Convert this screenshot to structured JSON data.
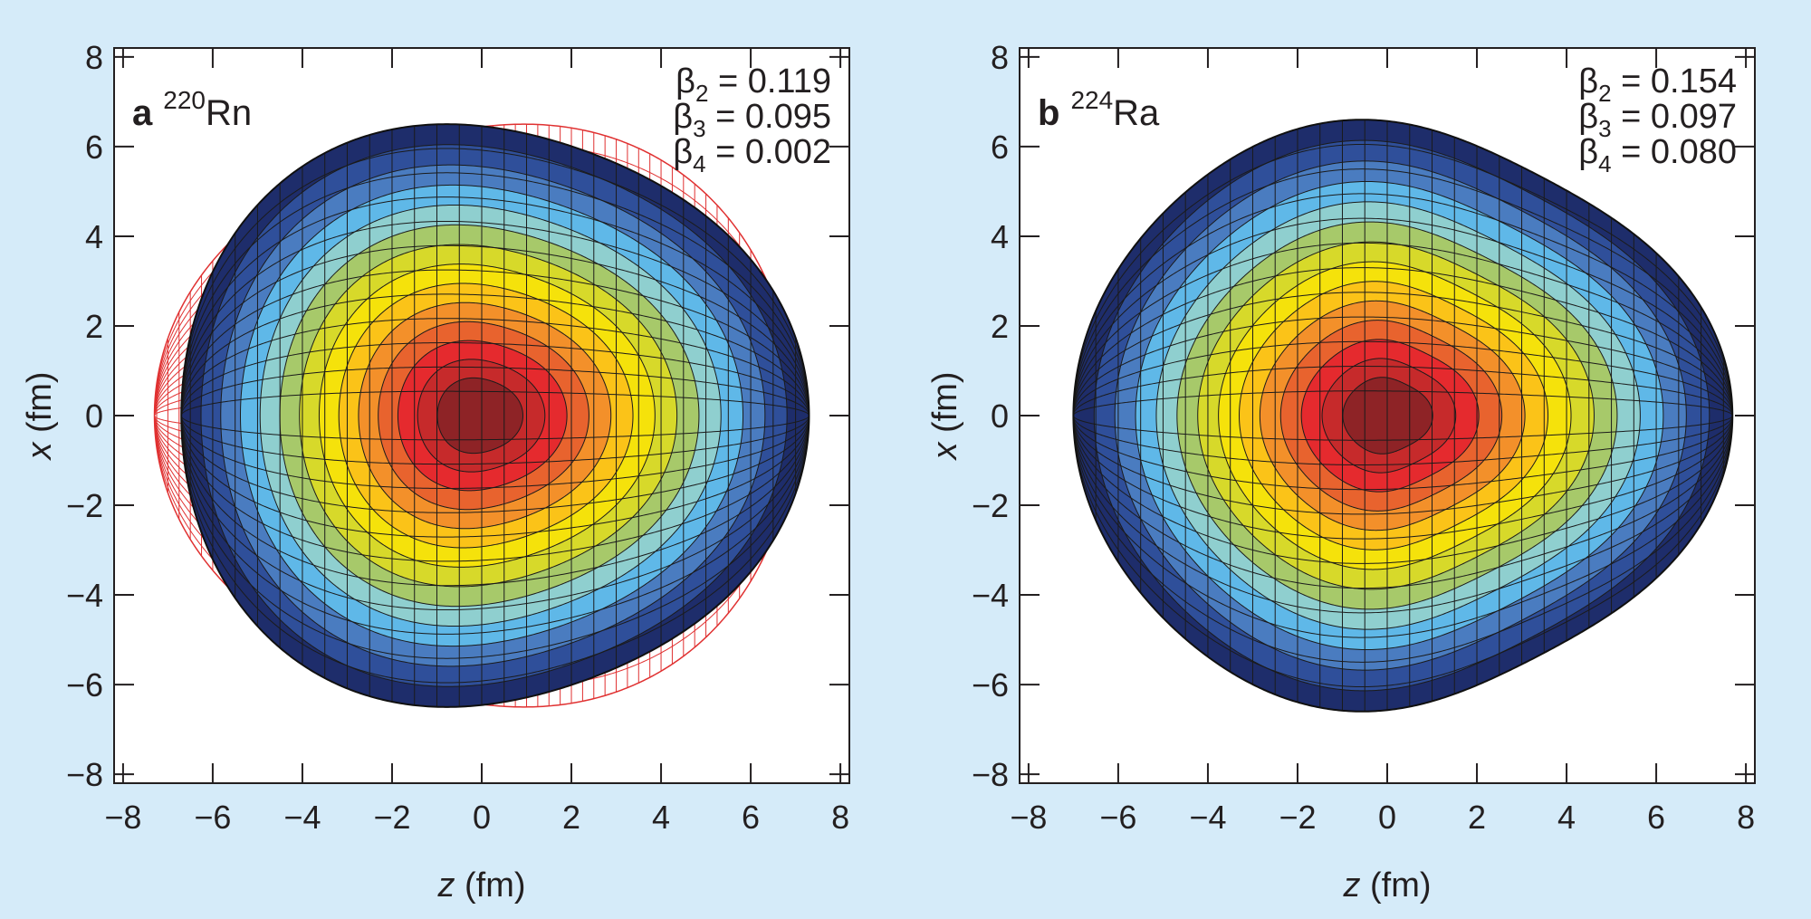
{
  "background_color": "#d5ebf9",
  "chart_data": [
    {
      "type": "heatmap",
      "panel_letter": "a",
      "nucleus": {
        "mass": "220",
        "symbol": "Rn"
      },
      "deformation": {
        "beta2": 0.119,
        "beta3": 0.095,
        "beta4": 0.002
      },
      "beta_lines": [
        {
          "sym": "β",
          "sub": "2",
          "val": " = 0.119"
        },
        {
          "sym": "β",
          "sub": "3",
          "val": " = 0.095"
        },
        {
          "sym": "β",
          "sub": "4",
          "val": " = 0.002"
        }
      ],
      "xlabel": {
        "var": "z",
        "unit": " (fm)"
      },
      "ylabel": {
        "var": "x",
        "unit": " (fm)"
      },
      "xlim": [
        -8.2,
        8.2
      ],
      "ylim": [
        -8.2,
        8.2
      ],
      "xticks": [
        -8,
        -6,
        -4,
        -2,
        0,
        2,
        4,
        6,
        8
      ],
      "yticks": [
        -8,
        -6,
        -4,
        -2,
        0,
        2,
        4,
        6,
        8
      ],
      "xtick_labels": [
        "−8",
        "−6",
        "−4",
        "−2",
        "0",
        "2",
        "4",
        "6",
        "8"
      ],
      "ytick_labels": [
        "−8",
        "−6",
        "−4",
        "−2",
        "0",
        "2",
        "4",
        "6",
        "8"
      ],
      "shape": {
        "R0": 6.58,
        "beta2": 0.119,
        "beta3": 0.095,
        "beta4": 0.002,
        "z_center": -0.2,
        "z_tip_right": 7.3,
        "z_tip_left": -6.7,
        "x_max": 6.5
      },
      "reflection_overlay": {
        "shown": true,
        "color": "#e03131",
        "description_hidden": true,
        "beta3": -0.095
      },
      "density_levels": 14,
      "grid": true
    },
    {
      "type": "heatmap",
      "panel_letter": "b",
      "nucleus": {
        "mass": "224",
        "symbol": "Ra"
      },
      "deformation": {
        "beta2": 0.154,
        "beta3": 0.097,
        "beta4": 0.08
      },
      "beta_lines": [
        {
          "sym": "β",
          "sub": "2",
          "val": " = 0.154"
        },
        {
          "sym": "β",
          "sub": "3",
          "val": " = 0.097"
        },
        {
          "sym": "β",
          "sub": "4",
          "val": " = 0.080"
        }
      ],
      "xlabel": {
        "var": "z",
        "unit": " (fm)"
      },
      "ylabel": {
        "var": "x",
        "unit": " (fm)"
      },
      "xlim": [
        -8.2,
        8.2
      ],
      "ylim": [
        -8.2,
        8.2
      ],
      "xticks": [
        -8,
        -6,
        -4,
        -2,
        0,
        2,
        4,
        6,
        8
      ],
      "yticks": [
        -8,
        -6,
        -4,
        -2,
        0,
        2,
        4,
        6,
        8
      ],
      "xtick_labels": [
        "−8",
        "−6",
        "−4",
        "−2",
        "0",
        "2",
        "4",
        "6",
        "8"
      ],
      "ytick_labels": [
        "−8",
        "−6",
        "−4",
        "−2",
        "0",
        "2",
        "4",
        "6",
        "8"
      ],
      "shape": {
        "R0": 6.6,
        "beta2": 0.154,
        "beta3": 0.097,
        "beta4": 0.08,
        "z_center": -0.3,
        "z_tip_right": 7.7,
        "z_tip_left": -7.0,
        "x_max": 6.6
      },
      "reflection_overlay": {
        "shown": false
      },
      "density_levels": 14,
      "grid": true
    }
  ],
  "colorscale": [
    "#1e2d6b",
    "#2f4f9a",
    "#4a7cc0",
    "#5fb8e8",
    "#8fcfcf",
    "#a7c96a",
    "#d7d92a",
    "#f5e20b",
    "#fbc318",
    "#f3902a",
    "#e8632e",
    "#e52a2e",
    "#c62a2b",
    "#8e2326"
  ]
}
